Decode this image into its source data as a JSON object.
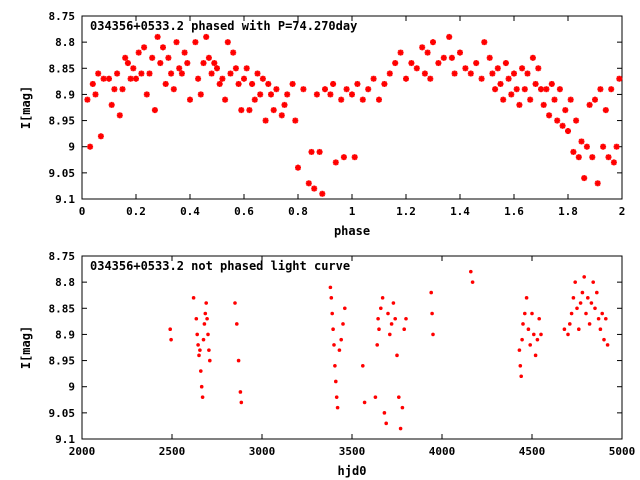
{
  "chart_data": [
    {
      "type": "scatter",
      "title": "034356+0533.2 phased with P=74.270day",
      "xlabel": "phase",
      "ylabel": "I[mag]",
      "xlim": [
        0,
        2
      ],
      "ylim": [
        9.1,
        8.75
      ],
      "y_inverted": true,
      "grid": false,
      "marker_color": "#ff0000",
      "x_ticks": [
        "0",
        "0.2",
        "0.4",
        "0.6",
        "0.8",
        "1",
        "1.2",
        "1.4",
        "1.6",
        "1.8",
        "2"
      ],
      "y_ticks": [
        "8.75",
        "8.8",
        "8.85",
        "8.9",
        "8.95",
        "9",
        "9.05",
        "9.1"
      ],
      "points": [
        [
          0.02,
          8.91
        ],
        [
          0.03,
          9.0
        ],
        [
          0.04,
          8.88
        ],
        [
          0.05,
          8.9
        ],
        [
          0.06,
          8.86
        ],
        [
          0.07,
          8.98
        ],
        [
          0.08,
          8.87
        ],
        [
          0.1,
          8.87
        ],
        [
          0.11,
          8.92
        ],
        [
          0.12,
          8.89
        ],
        [
          0.13,
          8.86
        ],
        [
          0.14,
          8.94
        ],
        [
          0.15,
          8.89
        ],
        [
          0.16,
          8.83
        ],
        [
          0.17,
          8.84
        ],
        [
          0.18,
          8.87
        ],
        [
          0.19,
          8.85
        ],
        [
          0.2,
          8.87
        ],
        [
          0.21,
          8.82
        ],
        [
          0.22,
          8.86
        ],
        [
          0.23,
          8.81
        ],
        [
          0.24,
          8.9
        ],
        [
          0.25,
          8.86
        ],
        [
          0.26,
          8.83
        ],
        [
          0.27,
          8.93
        ],
        [
          0.28,
          8.79
        ],
        [
          0.29,
          8.84
        ],
        [
          0.3,
          8.81
        ],
        [
          0.31,
          8.88
        ],
        [
          0.32,
          8.83
        ],
        [
          0.33,
          8.86
        ],
        [
          0.34,
          8.89
        ],
        [
          0.35,
          8.8
        ],
        [
          0.36,
          8.85
        ],
        [
          0.37,
          8.86
        ],
        [
          0.38,
          8.82
        ],
        [
          0.39,
          8.84
        ],
        [
          0.4,
          8.91
        ],
        [
          0.42,
          8.8
        ],
        [
          0.43,
          8.87
        ],
        [
          0.44,
          8.9
        ],
        [
          0.45,
          8.84
        ],
        [
          0.46,
          8.79
        ],
        [
          0.47,
          8.83
        ],
        [
          0.48,
          8.86
        ],
        [
          0.49,
          8.84
        ],
        [
          0.5,
          8.85
        ],
        [
          0.51,
          8.88
        ],
        [
          0.52,
          8.87
        ],
        [
          0.53,
          8.91
        ],
        [
          0.54,
          8.8
        ],
        [
          0.55,
          8.86
        ],
        [
          0.56,
          8.82
        ],
        [
          0.57,
          8.85
        ],
        [
          0.58,
          8.88
        ],
        [
          0.59,
          8.93
        ],
        [
          0.6,
          8.87
        ],
        [
          0.61,
          8.85
        ],
        [
          0.62,
          8.93
        ],
        [
          0.63,
          8.88
        ],
        [
          0.64,
          8.91
        ],
        [
          0.65,
          8.86
        ],
        [
          0.66,
          8.9
        ],
        [
          0.67,
          8.87
        ],
        [
          0.68,
          8.95
        ],
        [
          0.69,
          8.88
        ],
        [
          0.7,
          8.9
        ],
        [
          0.71,
          8.93
        ],
        [
          0.72,
          8.89
        ],
        [
          0.74,
          8.94
        ],
        [
          0.75,
          8.92
        ],
        [
          0.76,
          8.9
        ],
        [
          0.78,
          8.88
        ],
        [
          0.79,
          8.95
        ],
        [
          0.8,
          9.04
        ],
        [
          0.82,
          8.89
        ],
        [
          0.84,
          9.07
        ],
        [
          0.85,
          9.01
        ],
        [
          0.86,
          9.08
        ],
        [
          0.87,
          8.9
        ],
        [
          0.88,
          9.01
        ],
        [
          0.89,
          9.09
        ],
        [
          0.9,
          8.89
        ],
        [
          0.92,
          8.9
        ],
        [
          0.93,
          8.88
        ],
        [
          0.94,
          9.03
        ],
        [
          0.96,
          8.91
        ],
        [
          0.97,
          9.02
        ],
        [
          0.98,
          8.89
        ],
        [
          1.0,
          8.9
        ],
        [
          1.01,
          9.02
        ],
        [
          1.02,
          8.88
        ],
        [
          1.04,
          8.91
        ],
        [
          1.06,
          8.89
        ],
        [
          1.08,
          8.87
        ],
        [
          1.1,
          8.91
        ],
        [
          1.12,
          8.88
        ],
        [
          1.14,
          8.86
        ],
        [
          1.16,
          8.84
        ],
        [
          1.18,
          8.82
        ],
        [
          1.2,
          8.87
        ],
        [
          1.22,
          8.84
        ],
        [
          1.24,
          8.85
        ],
        [
          1.26,
          8.81
        ],
        [
          1.27,
          8.86
        ],
        [
          1.28,
          8.82
        ],
        [
          1.29,
          8.87
        ],
        [
          1.3,
          8.8
        ],
        [
          1.32,
          8.84
        ],
        [
          1.34,
          8.83
        ],
        [
          1.36,
          8.79
        ],
        [
          1.37,
          8.83
        ],
        [
          1.38,
          8.86
        ],
        [
          1.4,
          8.82
        ],
        [
          1.42,
          8.85
        ],
        [
          1.44,
          8.86
        ],
        [
          1.46,
          8.84
        ],
        [
          1.48,
          8.87
        ],
        [
          1.49,
          8.8
        ],
        [
          1.51,
          8.83
        ],
        [
          1.52,
          8.86
        ],
        [
          1.53,
          8.89
        ],
        [
          1.54,
          8.85
        ],
        [
          1.55,
          8.88
        ],
        [
          1.56,
          8.91
        ],
        [
          1.57,
          8.84
        ],
        [
          1.58,
          8.87
        ],
        [
          1.59,
          8.9
        ],
        [
          1.6,
          8.86
        ],
        [
          1.61,
          8.89
        ],
        [
          1.62,
          8.92
        ],
        [
          1.63,
          8.85
        ],
        [
          1.64,
          8.89
        ],
        [
          1.65,
          8.86
        ],
        [
          1.66,
          8.91
        ],
        [
          1.67,
          8.83
        ],
        [
          1.68,
          8.88
        ],
        [
          1.69,
          8.85
        ],
        [
          1.7,
          8.89
        ],
        [
          1.71,
          8.92
        ],
        [
          1.72,
          8.89
        ],
        [
          1.73,
          8.94
        ],
        [
          1.74,
          8.88
        ],
        [
          1.75,
          8.91
        ],
        [
          1.76,
          8.95
        ],
        [
          1.77,
          8.89
        ],
        [
          1.78,
          8.96
        ],
        [
          1.79,
          8.93
        ],
        [
          1.8,
          8.97
        ],
        [
          1.81,
          8.91
        ],
        [
          1.82,
          9.01
        ],
        [
          1.83,
          8.95
        ],
        [
          1.84,
          9.02
        ],
        [
          1.85,
          8.99
        ],
        [
          1.86,
          9.06
        ],
        [
          1.87,
          9.0
        ],
        [
          1.88,
          8.92
        ],
        [
          1.89,
          9.02
        ],
        [
          1.9,
          8.91
        ],
        [
          1.91,
          9.07
        ],
        [
          1.92,
          8.89
        ],
        [
          1.93,
          9.0
        ],
        [
          1.94,
          8.93
        ],
        [
          1.95,
          9.02
        ],
        [
          1.96,
          8.89
        ],
        [
          1.97,
          9.03
        ],
        [
          1.98,
          9.0
        ],
        [
          1.99,
          8.87
        ]
      ]
    },
    {
      "type": "scatter",
      "title": "034356+0533.2 not phased light curve",
      "xlabel": "hjd0",
      "ylabel": "I[mag]",
      "xlim": [
        2000,
        5000
      ],
      "ylim": [
        9.1,
        8.75
      ],
      "y_inverted": true,
      "grid": false,
      "marker_color": "#ff0000",
      "x_ticks": [
        "2000",
        "2500",
        "3000",
        "3500",
        "4000",
        "4500",
        "5000"
      ],
      "y_ticks": [
        "8.75",
        "8.8",
        "8.85",
        "8.9",
        "8.95",
        "9",
        "9.05",
        "9.1"
      ],
      "points": [
        [
          2490,
          8.89
        ],
        [
          2495,
          8.91
        ],
        [
          2620,
          8.83
        ],
        [
          2635,
          8.87
        ],
        [
          2640,
          8.9
        ],
        [
          2645,
          8.92
        ],
        [
          2650,
          8.94
        ],
        [
          2655,
          8.93
        ],
        [
          2660,
          8.97
        ],
        [
          2665,
          9.0
        ],
        [
          2670,
          9.02
        ],
        [
          2675,
          8.91
        ],
        [
          2680,
          8.88
        ],
        [
          2685,
          8.86
        ],
        [
          2690,
          8.84
        ],
        [
          2695,
          8.87
        ],
        [
          2700,
          8.9
        ],
        [
          2705,
          8.93
        ],
        [
          2710,
          8.95
        ],
        [
          2850,
          8.84
        ],
        [
          2860,
          8.88
        ],
        [
          2870,
          8.95
        ],
        [
          2880,
          9.01
        ],
        [
          2885,
          9.03
        ],
        [
          3380,
          8.81
        ],
        [
          3385,
          8.83
        ],
        [
          3390,
          8.86
        ],
        [
          3395,
          8.89
        ],
        [
          3400,
          8.92
        ],
        [
          3405,
          8.96
        ],
        [
          3410,
          8.99
        ],
        [
          3415,
          9.02
        ],
        [
          3420,
          9.04
        ],
        [
          3430,
          8.93
        ],
        [
          3440,
          8.91
        ],
        [
          3450,
          8.88
        ],
        [
          3460,
          8.85
        ],
        [
          3560,
          8.96
        ],
        [
          3570,
          9.03
        ],
        [
          3630,
          9.02
        ],
        [
          3640,
          8.92
        ],
        [
          3645,
          8.87
        ],
        [
          3650,
          8.89
        ],
        [
          3660,
          8.85
        ],
        [
          3670,
          8.83
        ],
        [
          3680,
          9.05
        ],
        [
          3690,
          9.07
        ],
        [
          3700,
          8.86
        ],
        [
          3710,
          8.9
        ],
        [
          3720,
          8.88
        ],
        [
          3730,
          8.84
        ],
        [
          3740,
          8.87
        ],
        [
          3750,
          8.94
        ],
        [
          3760,
          9.02
        ],
        [
          3770,
          9.08
        ],
        [
          3780,
          9.04
        ],
        [
          3790,
          8.89
        ],
        [
          3800,
          8.87
        ],
        [
          3940,
          8.82
        ],
        [
          3945,
          8.86
        ],
        [
          3950,
          8.9
        ],
        [
          4160,
          8.78
        ],
        [
          4170,
          8.8
        ],
        [
          4430,
          8.93
        ],
        [
          4435,
          8.96
        ],
        [
          4440,
          8.98
        ],
        [
          4445,
          8.91
        ],
        [
          4450,
          8.88
        ],
        [
          4460,
          8.86
        ],
        [
          4470,
          8.83
        ],
        [
          4480,
          8.89
        ],
        [
          4490,
          8.92
        ],
        [
          4500,
          8.86
        ],
        [
          4510,
          8.9
        ],
        [
          4520,
          8.94
        ],
        [
          4530,
          8.91
        ],
        [
          4540,
          8.87
        ],
        [
          4550,
          8.9
        ],
        [
          4680,
          8.89
        ],
        [
          4700,
          8.9
        ],
        [
          4710,
          8.88
        ],
        [
          4720,
          8.86
        ],
        [
          4730,
          8.83
        ],
        [
          4740,
          8.8
        ],
        [
          4750,
          8.85
        ],
        [
          4760,
          8.89
        ],
        [
          4770,
          8.84
        ],
        [
          4780,
          8.82
        ],
        [
          4790,
          8.79
        ],
        [
          4800,
          8.86
        ],
        [
          4810,
          8.83
        ],
        [
          4820,
          8.88
        ],
        [
          4830,
          8.84
        ],
        [
          4840,
          8.8
        ],
        [
          4850,
          8.85
        ],
        [
          4860,
          8.82
        ],
        [
          4870,
          8.87
        ],
        [
          4880,
          8.89
        ],
        [
          4890,
          8.86
        ],
        [
          4900,
          8.91
        ],
        [
          4910,
          8.87
        ],
        [
          4920,
          8.92
        ]
      ]
    }
  ]
}
